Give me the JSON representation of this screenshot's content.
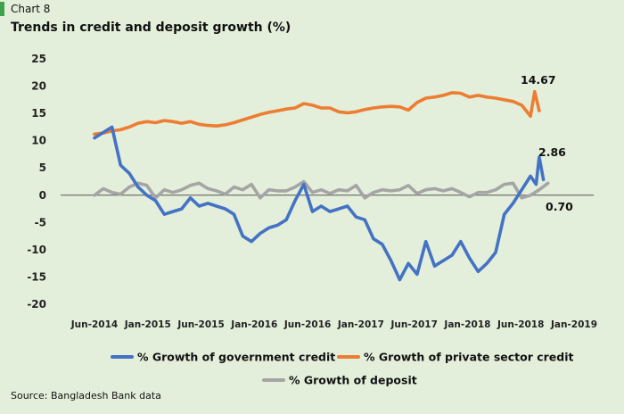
{
  "header": {
    "chart_label": "Chart 8",
    "title": "Trends in credit and deposit growth (%)"
  },
  "footer": {
    "source": "Source: Bangladesh Bank data"
  },
  "colors": {
    "government": "#4472c4",
    "private": "#ed7d31",
    "deposit": "#a5a5a5",
    "accent": "#3fa34d",
    "background": "#e3efdb"
  },
  "chart_data": {
    "type": "line",
    "title": "Trends in credit and deposit growth (%)",
    "xlabel": "",
    "ylabel": "",
    "ylim": [
      -20,
      25
    ],
    "yticks": [
      "25",
      "20",
      "15",
      "10",
      "5",
      "0",
      "-5",
      "-10",
      "-15",
      "-20"
    ],
    "xlim": [
      "2014-06",
      "2019-01"
    ],
    "xticks": [
      "Jun-2014",
      "Jan-2015",
      "Jun-2015",
      "Jan-2016",
      "Jun-2016",
      "Jan-2017",
      "Jun-2017",
      "Jan-2018",
      "Jun-2018",
      "Jan-2019"
    ],
    "grid": false,
    "legend_position": "bottom",
    "annotations": [
      "14.67",
      "2.86",
      "0.70"
    ],
    "series": [
      {
        "name": "% Growth of government credit",
        "color": "#4472c4",
        "points": [
          [
            "2014-06",
            10.5
          ],
          [
            "2014-07",
            11.5
          ],
          [
            "2014-08",
            12.5
          ],
          [
            "2014-09",
            5.5
          ],
          [
            "2014-10",
            4.0
          ],
          [
            "2014-11",
            1.5
          ],
          [
            "2014-12",
            0.0
          ],
          [
            "2015-01",
            -1.0
          ],
          [
            "2015-02",
            -3.5
          ],
          [
            "2015-03",
            -3.0
          ],
          [
            "2015-04",
            -2.5
          ],
          [
            "2015-05",
            -0.5
          ],
          [
            "2015-06",
            -2.0
          ],
          [
            "2015-07",
            -1.5
          ],
          [
            "2015-08",
            -2.0
          ],
          [
            "2015-09",
            -2.5
          ],
          [
            "2015-10",
            -3.5
          ],
          [
            "2015-11",
            -7.5
          ],
          [
            "2015-12",
            -8.5
          ],
          [
            "2016-01",
            -7.0
          ],
          [
            "2016-02",
            -6.0
          ],
          [
            "2016-03",
            -5.5
          ],
          [
            "2016-04",
            -4.5
          ],
          [
            "2016-05",
            -1.0
          ],
          [
            "2016-06",
            2.0
          ],
          [
            "2016-07",
            -3.0
          ],
          [
            "2016-08",
            -2.0
          ],
          [
            "2016-09",
            -3.0
          ],
          [
            "2016-10",
            -2.5
          ],
          [
            "2016-11",
            -2.0
          ],
          [
            "2016-12",
            -4.0
          ],
          [
            "2017-01",
            -4.5
          ],
          [
            "2017-02",
            -8.0
          ],
          [
            "2017-03",
            -9.0
          ],
          [
            "2017-04",
            -12.0
          ],
          [
            "2017-05",
            -15.5
          ],
          [
            "2017-06",
            -12.5
          ],
          [
            "2017-07",
            -14.5
          ],
          [
            "2017-08",
            -8.5
          ],
          [
            "2017-09",
            -13.0
          ],
          [
            "2017-10",
            -12.0
          ],
          [
            "2017-11",
            -11.0
          ],
          [
            "2017-12",
            -8.5
          ],
          [
            "2018-01",
            -11.5
          ],
          [
            "2018-02",
            -14.0
          ],
          [
            "2018-03",
            -12.5
          ],
          [
            "2018-04",
            -10.5
          ],
          [
            "2018-05",
            -3.5
          ],
          [
            "2018-06",
            -1.5
          ],
          [
            "2018-07",
            1.0
          ],
          [
            "2018-08",
            3.5
          ],
          [
            "2018-08-20",
            2.0
          ],
          [
            "2018-09",
            7.0
          ],
          [
            "2018-09-15",
            2.86
          ]
        ]
      },
      {
        "name": "% Growth of private sector credit",
        "color": "#ed7d31",
        "points": [
          [
            "2014-06",
            11.2
          ],
          [
            "2014-07",
            11.4
          ],
          [
            "2014-08",
            11.8
          ],
          [
            "2014-09",
            12.0
          ],
          [
            "2014-10",
            12.5
          ],
          [
            "2014-11",
            13.2
          ],
          [
            "2014-12",
            13.5
          ],
          [
            "2015-01",
            13.3
          ],
          [
            "2015-02",
            13.7
          ],
          [
            "2015-03",
            13.5
          ],
          [
            "2015-04",
            13.2
          ],
          [
            "2015-05",
            13.5
          ],
          [
            "2015-06",
            13.0
          ],
          [
            "2015-07",
            12.8
          ],
          [
            "2015-08",
            12.7
          ],
          [
            "2015-09",
            12.9
          ],
          [
            "2015-10",
            13.3
          ],
          [
            "2015-11",
            13.8
          ],
          [
            "2015-12",
            14.3
          ],
          [
            "2016-01",
            14.8
          ],
          [
            "2016-02",
            15.2
          ],
          [
            "2016-03",
            15.5
          ],
          [
            "2016-04",
            15.8
          ],
          [
            "2016-05",
            16.0
          ],
          [
            "2016-06",
            16.8
          ],
          [
            "2016-07",
            16.5
          ],
          [
            "2016-08",
            16.0
          ],
          [
            "2016-09",
            16.0
          ],
          [
            "2016-10",
            15.3
          ],
          [
            "2016-11",
            15.1
          ],
          [
            "2016-12",
            15.3
          ],
          [
            "2017-01",
            15.7
          ],
          [
            "2017-02",
            16.0
          ],
          [
            "2017-03",
            16.2
          ],
          [
            "2017-04",
            16.3
          ],
          [
            "2017-05",
            16.2
          ],
          [
            "2017-06",
            15.6
          ],
          [
            "2017-07",
            17.0
          ],
          [
            "2017-08",
            17.8
          ],
          [
            "2017-09",
            18.0
          ],
          [
            "2017-10",
            18.3
          ],
          [
            "2017-11",
            18.8
          ],
          [
            "2017-12",
            18.7
          ],
          [
            "2018-01",
            18.0
          ],
          [
            "2018-02",
            18.3
          ],
          [
            "2018-03",
            18.0
          ],
          [
            "2018-04",
            17.8
          ],
          [
            "2018-05",
            17.5
          ],
          [
            "2018-06",
            17.2
          ],
          [
            "2018-07",
            16.5
          ],
          [
            "2018-08",
            14.5
          ],
          [
            "2018-08-15",
            19.0
          ],
          [
            "2018-09",
            15.5
          ]
        ]
      },
      {
        "name": "% Growth of deposit",
        "color": "#a5a5a5",
        "points": [
          [
            "2014-06",
            0.0
          ],
          [
            "2014-07",
            1.2
          ],
          [
            "2014-08",
            0.5
          ],
          [
            "2014-09",
            0.2
          ],
          [
            "2014-10",
            1.5
          ],
          [
            "2014-11",
            2.2
          ],
          [
            "2014-12",
            1.8
          ],
          [
            "2015-01",
            -0.5
          ],
          [
            "2015-02",
            1.0
          ],
          [
            "2015-03",
            0.5
          ],
          [
            "2015-04",
            1.0
          ],
          [
            "2015-05",
            1.8
          ],
          [
            "2015-06",
            2.2
          ],
          [
            "2015-07",
            1.2
          ],
          [
            "2015-08",
            0.8
          ],
          [
            "2015-09",
            0.2
          ],
          [
            "2015-10",
            1.5
          ],
          [
            "2015-11",
            1.0
          ],
          [
            "2015-12",
            2.0
          ],
          [
            "2016-01",
            -0.5
          ],
          [
            "2016-02",
            1.0
          ],
          [
            "2016-03",
            0.8
          ],
          [
            "2016-04",
            0.8
          ],
          [
            "2016-05",
            1.5
          ],
          [
            "2016-06",
            2.5
          ],
          [
            "2016-07",
            0.5
          ],
          [
            "2016-08",
            1.0
          ],
          [
            "2016-09",
            0.3
          ],
          [
            "2016-10",
            1.0
          ],
          [
            "2016-11",
            0.8
          ],
          [
            "2016-12",
            1.8
          ],
          [
            "2017-01",
            -0.5
          ],
          [
            "2017-02",
            0.5
          ],
          [
            "2017-03",
            1.0
          ],
          [
            "2017-04",
            0.8
          ],
          [
            "2017-05",
            1.0
          ],
          [
            "2017-06",
            1.8
          ],
          [
            "2017-07",
            0.3
          ],
          [
            "2017-08",
            1.0
          ],
          [
            "2017-09",
            1.2
          ],
          [
            "2017-10",
            0.8
          ],
          [
            "2017-11",
            1.2
          ],
          [
            "2017-12",
            0.5
          ],
          [
            "2018-01",
            -0.3
          ],
          [
            "2018-02",
            0.5
          ],
          [
            "2018-03",
            0.5
          ],
          [
            "2018-04",
            1.0
          ],
          [
            "2018-05",
            2.0
          ],
          [
            "2018-06",
            2.2
          ],
          [
            "2018-07",
            -0.5
          ],
          [
            "2018-08",
            0.0
          ],
          [
            "2018-09",
            1.0
          ],
          [
            "2018-10",
            2.2
          ]
        ]
      }
    ]
  }
}
